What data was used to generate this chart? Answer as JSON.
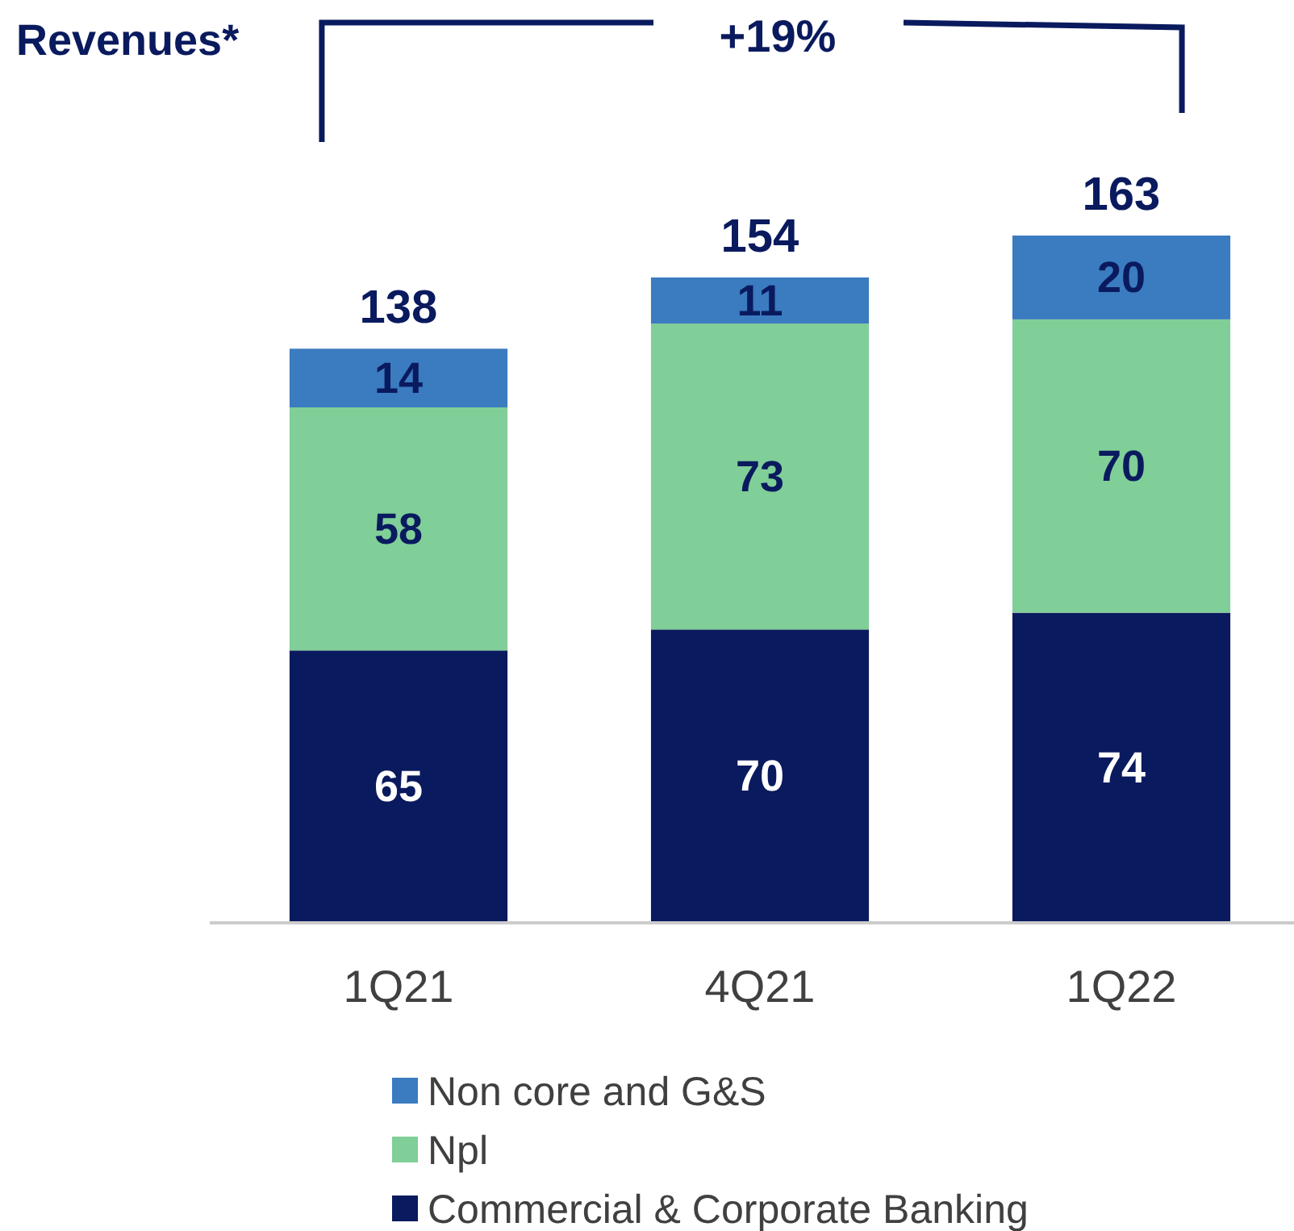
{
  "chart_data": {
    "type": "bar",
    "title": "Revenues*",
    "categories": [
      "1Q21",
      "4Q21",
      "1Q22"
    ],
    "stacked": true,
    "data_labels": true,
    "legend": "bottom",
    "series": [
      {
        "name": "Commercial & Corporate Banking",
        "color": "#0a1a5e",
        "values": [
          65,
          70,
          74
        ]
      },
      {
        "name": "Npl",
        "color": "#80ce98",
        "values": [
          58,
          73,
          70
        ]
      },
      {
        "name": "Non core and G&S",
        "color": "#3b7bc0",
        "values": [
          14,
          11,
          20
        ]
      }
    ],
    "totals": [
      "138",
      "154",
      "163"
    ],
    "annotations": [
      "+19%"
    ]
  }
}
